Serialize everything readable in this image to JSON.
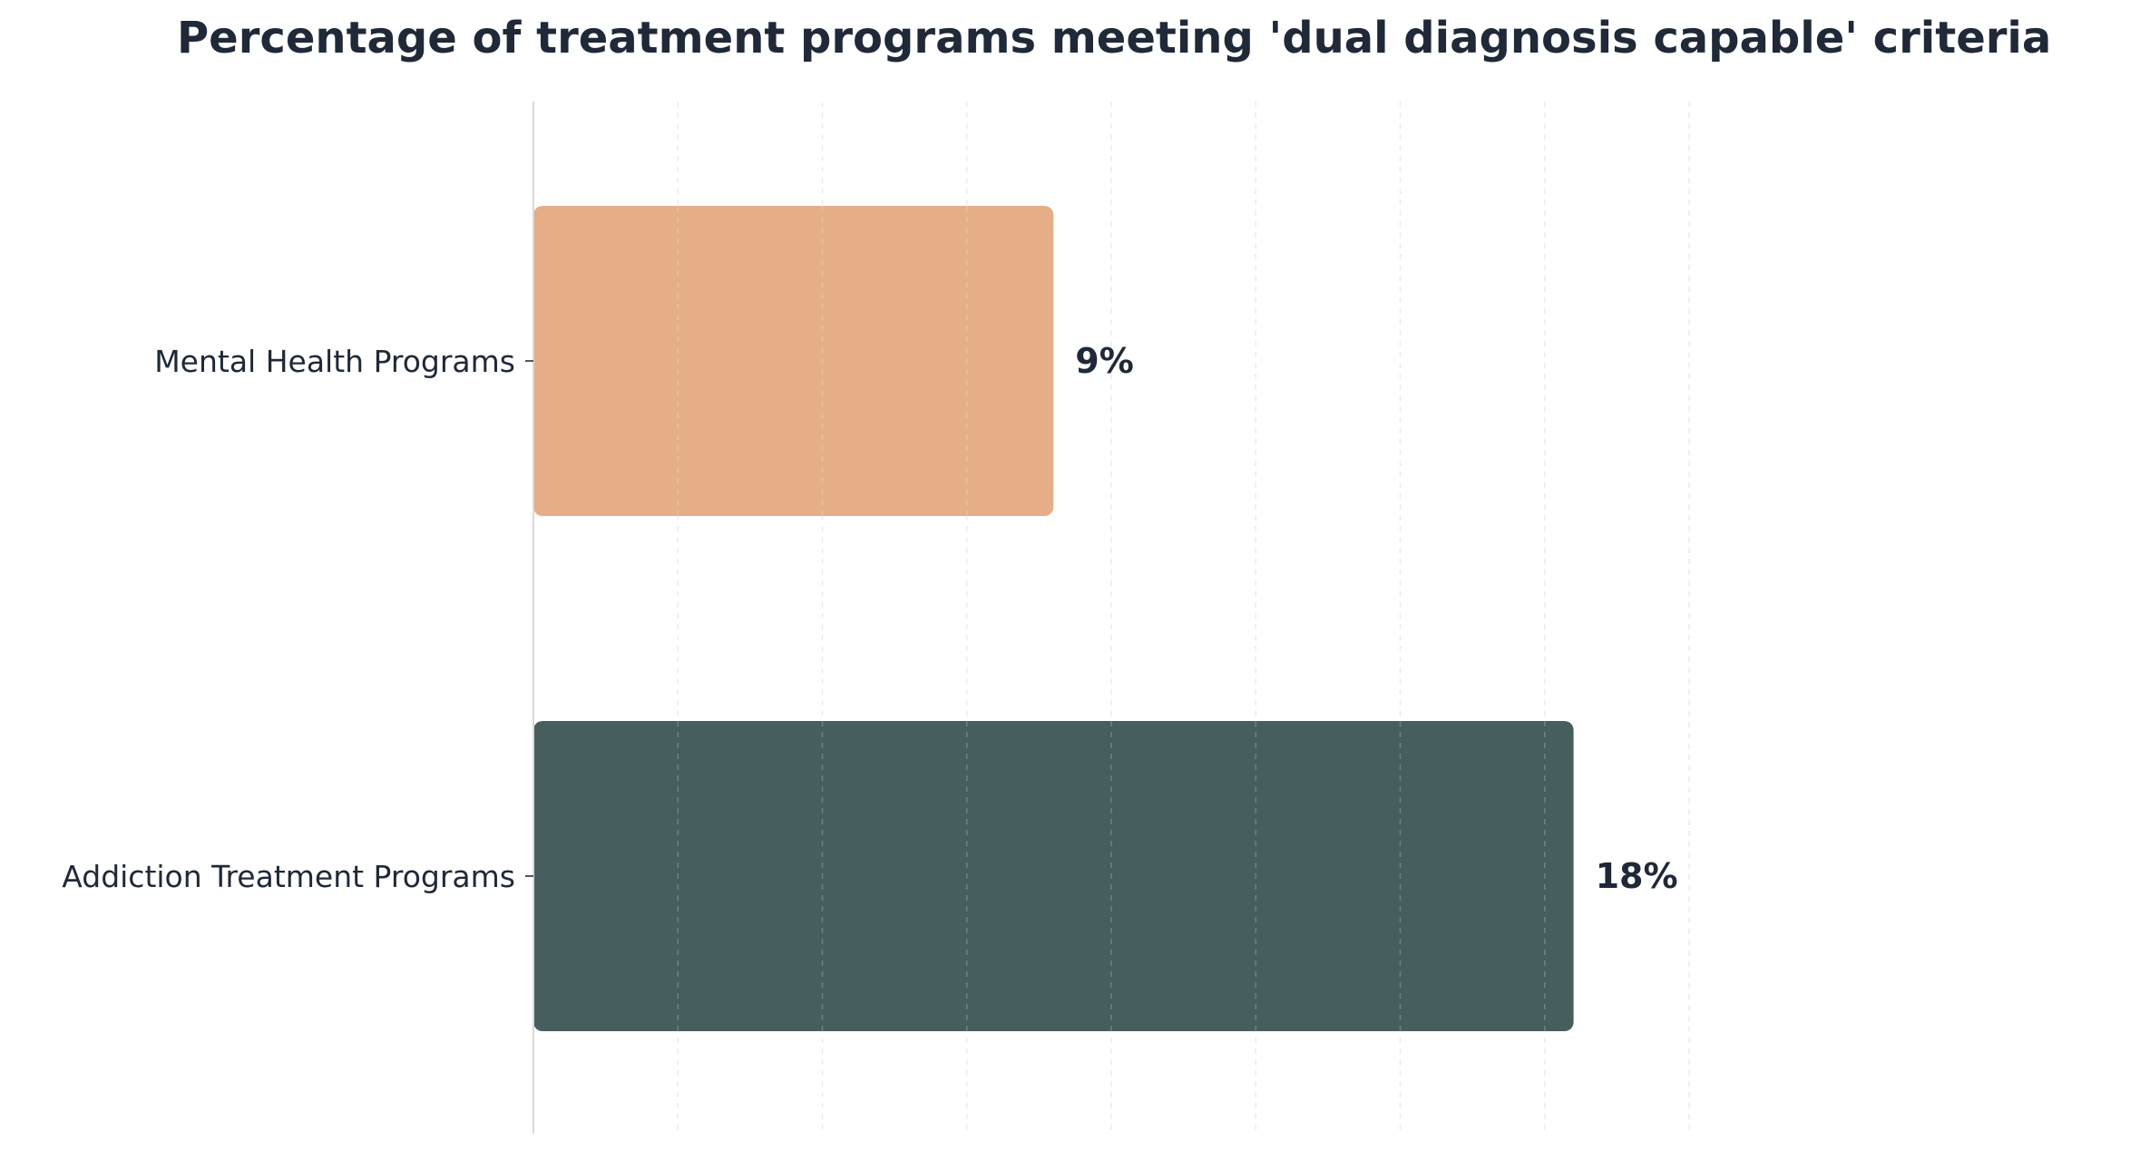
{
  "chart_data": {
    "type": "bar",
    "orientation": "horizontal",
    "title": "Percentage of treatment programs meeting 'dual diagnosis capable' criteria",
    "categories": [
      "Mental Health Programs",
      "Addiction Treatment Programs"
    ],
    "values": [
      9,
      18
    ],
    "value_labels": [
      "9%",
      "18%"
    ],
    "xlabel": "",
    "ylabel": "",
    "xlim": [
      0,
      26
    ],
    "x_gridlines": [
      0,
      2.5,
      5,
      7.5,
      10,
      12.5,
      15,
      17.5,
      20
    ],
    "grid": true,
    "legend": "none",
    "colors": {
      "bars": [
        "#E6AE87",
        "#475E5E"
      ],
      "text": "#1f2937",
      "grid": "#cfd4d8",
      "axis": "#d9d9d9"
    }
  }
}
